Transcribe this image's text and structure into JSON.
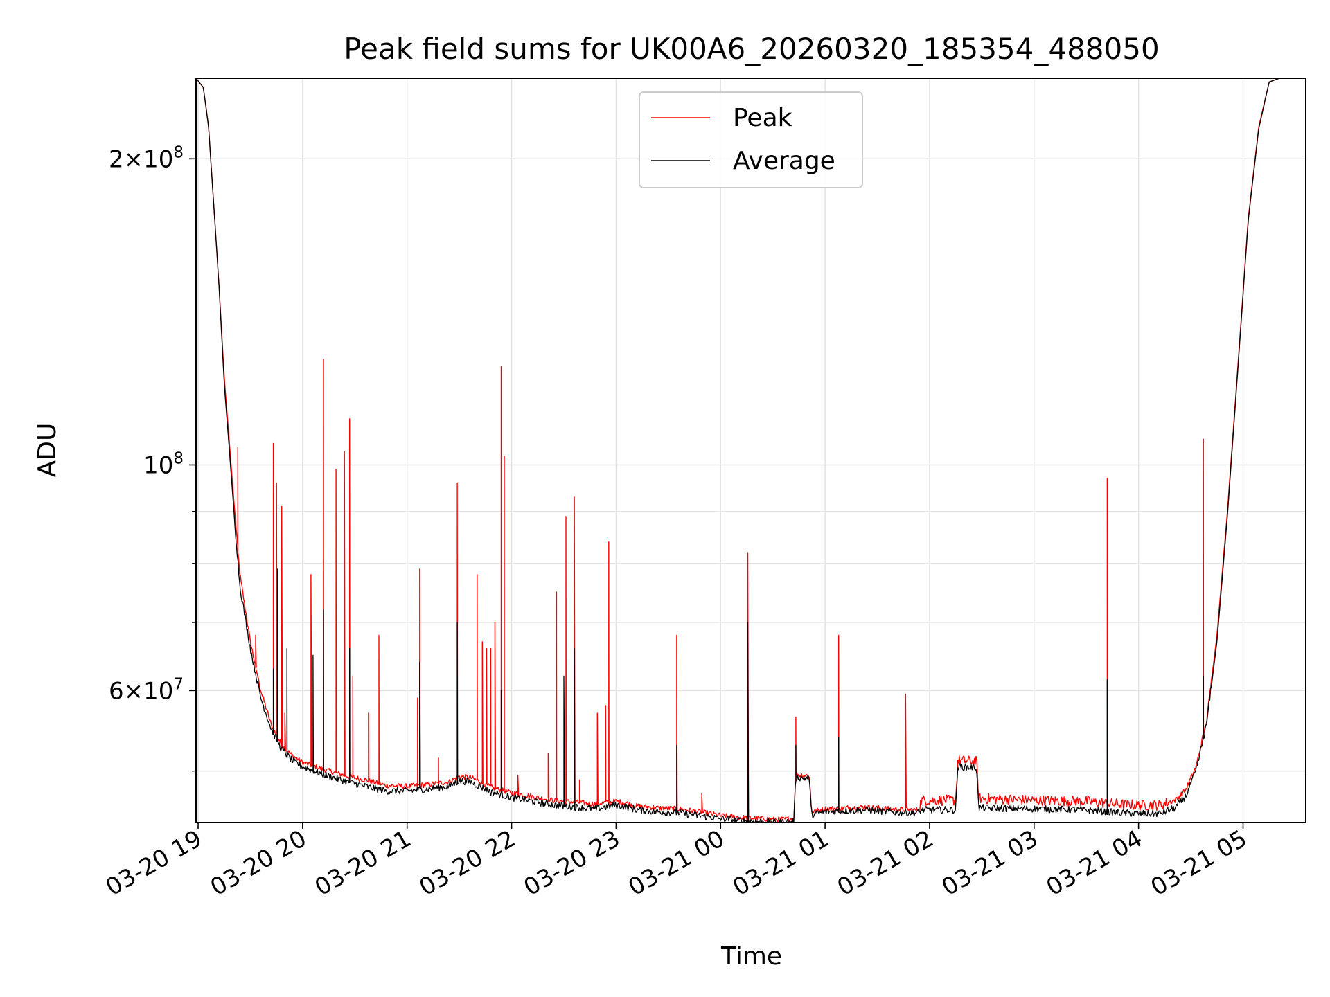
{
  "chart_data": {
    "type": "line",
    "title": "Peak field sums for UK00A6_20260320_185354_488050",
    "xlabel": "Time",
    "ylabel": "ADU",
    "yscale": "log",
    "ylim": [
      44500000,
      240000000
    ],
    "xlim_hours": [
      -0.02,
      10.6
    ],
    "grid": true,
    "legend_position": "upper center",
    "colors": {
      "peak": "#ff0000",
      "average": "#000000",
      "grid": "#e3e3e3"
    },
    "x_ticks": [
      {
        "hour": 0,
        "label": "03-20 19"
      },
      {
        "hour": 1,
        "label": "03-20 20"
      },
      {
        "hour": 2,
        "label": "03-20 21"
      },
      {
        "hour": 3,
        "label": "03-20 22"
      },
      {
        "hour": 4,
        "label": "03-20 23"
      },
      {
        "hour": 5,
        "label": "03-21 00"
      },
      {
        "hour": 6,
        "label": "03-21 01"
      },
      {
        "hour": 7,
        "label": "03-21 02"
      },
      {
        "hour": 8,
        "label": "03-21 03"
      },
      {
        "hour": 9,
        "label": "03-21 04"
      },
      {
        "hour": 10,
        "label": "03-21 05"
      }
    ],
    "y_major_ticks": [
      {
        "value": 60000000,
        "mantissa": "6",
        "exponent": "7"
      },
      {
        "value": 100000000,
        "mantissa": "",
        "exponent": "8"
      },
      {
        "value": 200000000,
        "mantissa": "2",
        "exponent": "8"
      }
    ],
    "y_minor_ticks": [
      50000000,
      70000000,
      80000000,
      90000000
    ],
    "series": [
      {
        "name": "Peak",
        "color": "#ff0000",
        "points": [
          [
            -0.02,
            240000000
          ],
          [
            0.05,
            235000000
          ],
          [
            0.1,
            215000000
          ],
          [
            0.15,
            180000000
          ],
          [
            0.2,
            150000000
          ],
          [
            0.25,
            122000000
          ],
          [
            0.3,
            105000000
          ],
          [
            0.35,
            90000000
          ],
          [
            0.4,
            78000000
          ],
          [
            0.5,
            67000000
          ],
          [
            0.6,
            60000000
          ],
          [
            0.7,
            55500000
          ],
          [
            0.8,
            53000000
          ],
          [
            0.9,
            51800000
          ],
          [
            1.0,
            51000000
          ],
          [
            1.2,
            50200000
          ],
          [
            1.4,
            49500000
          ],
          [
            1.6,
            49000000
          ],
          [
            1.8,
            48400000
          ],
          [
            2.0,
            48300000
          ],
          [
            2.2,
            48500000
          ],
          [
            2.4,
            48800000
          ],
          [
            2.5,
            49400000
          ],
          [
            2.6,
            49300000
          ],
          [
            2.7,
            48800000
          ],
          [
            2.8,
            48200000
          ],
          [
            3.0,
            47600000
          ],
          [
            3.2,
            47200000
          ],
          [
            3.4,
            46800000
          ],
          [
            3.6,
            46600000
          ],
          [
            3.8,
            46400000
          ],
          [
            4.0,
            46700000
          ],
          [
            4.1,
            46500000
          ],
          [
            4.2,
            46200000
          ],
          [
            4.4,
            46000000
          ],
          [
            4.6,
            45900000
          ],
          [
            4.8,
            45600000
          ],
          [
            5.0,
            45200000
          ],
          [
            5.2,
            45000000
          ],
          [
            5.4,
            44900000
          ],
          [
            5.55,
            44800000
          ],
          [
            5.7,
            44900000
          ],
          [
            5.72,
            49600000
          ],
          [
            5.85,
            49500000
          ],
          [
            5.87,
            45600000
          ],
          [
            6.0,
            45900000
          ],
          [
            6.2,
            46000000
          ],
          [
            6.4,
            46100000
          ],
          [
            6.6,
            45900000
          ],
          [
            6.8,
            45800000
          ],
          [
            6.9,
            45800000
          ],
          [
            6.92,
            46800000
          ],
          [
            7.25,
            46800000
          ],
          [
            7.27,
            51200000
          ],
          [
            7.45,
            51100000
          ],
          [
            7.47,
            47000000
          ],
          [
            8.0,
            46800000
          ],
          [
            8.5,
            46700000
          ],
          [
            8.8,
            46400000
          ],
          [
            9.0,
            46300000
          ],
          [
            9.2,
            46300000
          ],
          [
            9.35,
            46800000
          ],
          [
            9.45,
            47900000
          ],
          [
            9.55,
            50500000
          ],
          [
            9.65,
            56000000
          ],
          [
            9.75,
            68000000
          ],
          [
            9.85,
            90000000
          ],
          [
            9.95,
            125000000
          ],
          [
            10.05,
            175000000
          ],
          [
            10.15,
            215000000
          ],
          [
            10.25,
            238000000
          ],
          [
            10.35,
            240000000
          ],
          [
            10.6,
            240000000
          ]
        ],
        "spikes": [
          [
            0.38,
            104000000
          ],
          [
            0.55,
            68000000
          ],
          [
            0.72,
            105000000
          ],
          [
            0.75,
            96000000
          ],
          [
            0.8,
            91000000
          ],
          [
            0.83,
            57000000
          ],
          [
            1.08,
            78000000
          ],
          [
            1.2,
            127000000
          ],
          [
            1.32,
            99000000
          ],
          [
            1.4,
            103000000
          ],
          [
            1.45,
            111000000
          ],
          [
            1.48,
            62000000
          ],
          [
            1.63,
            57000000
          ],
          [
            1.73,
            68000000
          ],
          [
            2.1,
            59000000
          ],
          [
            2.12,
            79000000
          ],
          [
            2.3,
            51500000
          ],
          [
            2.48,
            96000000
          ],
          [
            2.67,
            78000000
          ],
          [
            2.72,
            67000000
          ],
          [
            2.76,
            66000000
          ],
          [
            2.8,
            66000000
          ],
          [
            2.84,
            70000000
          ],
          [
            2.9,
            125000000
          ],
          [
            2.93,
            102000000
          ],
          [
            3.06,
            49500000
          ],
          [
            3.35,
            52000000
          ],
          [
            3.43,
            75000000
          ],
          [
            3.52,
            89000000
          ],
          [
            3.6,
            93000000
          ],
          [
            3.65,
            49000000
          ],
          [
            3.82,
            57000000
          ],
          [
            3.9,
            58000000
          ],
          [
            3.93,
            84000000
          ],
          [
            4.58,
            68000000
          ],
          [
            4.82,
            47500000
          ],
          [
            5.26,
            82000000
          ],
          [
            5.72,
            56500000
          ],
          [
            6.13,
            68000000
          ],
          [
            6.77,
            59500000
          ],
          [
            8.7,
            97000000
          ],
          [
            9.62,
            106000000
          ]
        ]
      },
      {
        "name": "Average",
        "color": "#000000",
        "points": [
          [
            -0.02,
            240000000
          ],
          [
            0.05,
            235000000
          ],
          [
            0.1,
            215000000
          ],
          [
            0.15,
            180000000
          ],
          [
            0.2,
            150000000
          ],
          [
            0.25,
            120000000
          ],
          [
            0.3,
            103000000
          ],
          [
            0.35,
            88000000
          ],
          [
            0.4,
            76000000
          ],
          [
            0.5,
            66000000
          ],
          [
            0.6,
            59000000
          ],
          [
            0.7,
            55000000
          ],
          [
            0.8,
            52500000
          ],
          [
            0.9,
            51200000
          ],
          [
            1.0,
            50500000
          ],
          [
            1.2,
            49600000
          ],
          [
            1.4,
            48900000
          ],
          [
            1.6,
            48300000
          ],
          [
            1.8,
            47800000
          ],
          [
            2.0,
            47800000
          ],
          [
            2.2,
            48000000
          ],
          [
            2.4,
            48300000
          ],
          [
            2.5,
            48900000
          ],
          [
            2.6,
            48800000
          ],
          [
            2.7,
            48300000
          ],
          [
            2.8,
            47700000
          ],
          [
            3.0,
            47100000
          ],
          [
            3.2,
            46700000
          ],
          [
            3.4,
            46300000
          ],
          [
            3.6,
            46100000
          ],
          [
            3.8,
            45900000
          ],
          [
            4.0,
            46300000
          ],
          [
            4.1,
            46100000
          ],
          [
            4.2,
            45800000
          ],
          [
            4.4,
            45600000
          ],
          [
            4.6,
            45500000
          ],
          [
            4.8,
            45200000
          ],
          [
            5.0,
            44900000
          ],
          [
            5.2,
            44700000
          ],
          [
            5.4,
            44600000
          ],
          [
            5.55,
            44500000
          ],
          [
            5.7,
            44600000
          ],
          [
            5.72,
            49300000
          ],
          [
            5.85,
            49200000
          ],
          [
            5.87,
            45300000
          ],
          [
            6.0,
            45600000
          ],
          [
            6.2,
            45700000
          ],
          [
            6.4,
            45800000
          ],
          [
            6.6,
            45600000
          ],
          [
            6.8,
            45500000
          ],
          [
            6.9,
            45500000
          ],
          [
            6.92,
            45800000
          ],
          [
            7.25,
            45800000
          ],
          [
            7.27,
            50500000
          ],
          [
            7.45,
            50400000
          ],
          [
            7.47,
            46000000
          ],
          [
            8.0,
            45900000
          ],
          [
            8.5,
            45800000
          ],
          [
            8.8,
            45500000
          ],
          [
            9.0,
            45400000
          ],
          [
            9.2,
            45400000
          ],
          [
            9.35,
            46000000
          ],
          [
            9.45,
            47200000
          ],
          [
            9.55,
            50000000
          ],
          [
            9.65,
            55500000
          ],
          [
            9.75,
            67000000
          ],
          [
            9.85,
            89000000
          ],
          [
            9.95,
            124000000
          ],
          [
            10.05,
            174000000
          ],
          [
            10.15,
            214000000
          ],
          [
            10.25,
            238000000
          ],
          [
            10.35,
            240000000
          ],
          [
            10.6,
            240000000
          ]
        ],
        "spikes": [
          [
            0.72,
            63000000
          ],
          [
            0.76,
            79000000
          ],
          [
            0.85,
            66000000
          ],
          [
            1.1,
            65000000
          ],
          [
            1.2,
            72000000
          ],
          [
            1.45,
            66000000
          ],
          [
            2.12,
            64000000
          ],
          [
            2.48,
            70000000
          ],
          [
            2.9,
            60000000
          ],
          [
            3.5,
            62000000
          ],
          [
            3.6,
            66000000
          ],
          [
            4.58,
            53000000
          ],
          [
            5.26,
            70000000
          ],
          [
            5.72,
            53000000
          ],
          [
            6.13,
            54000000
          ],
          [
            8.7,
            61500000
          ],
          [
            9.62,
            62000000
          ]
        ]
      }
    ]
  }
}
